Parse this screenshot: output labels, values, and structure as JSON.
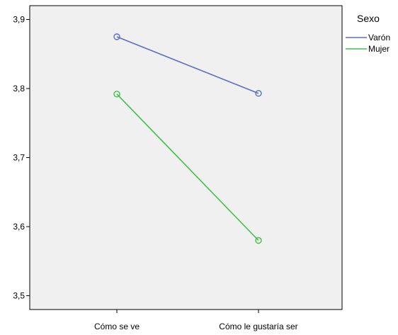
{
  "chart_data": {
    "type": "line",
    "categories": [
      "Cómo se ve",
      "Cómo le gustaría ser"
    ],
    "series": [
      {
        "name": "Varón",
        "values": [
          3.875,
          3.793
        ],
        "color": "#5b6fc9"
      },
      {
        "name": "Mujer",
        "values": [
          3.792,
          3.58
        ],
        "color": "#3fc24a"
      }
    ],
    "ylim": [
      3.48,
      3.92
    ],
    "yticks": [
      3.5,
      3.6,
      3.7,
      3.8,
      3.9
    ],
    "ytick_labels": [
      "3,5",
      "3,6",
      "3,7",
      "3,8",
      "3,9"
    ],
    "legend_title": "Sexo",
    "legend_position": "top-right",
    "plot_background": "#f0f0f0",
    "grid": false
  }
}
